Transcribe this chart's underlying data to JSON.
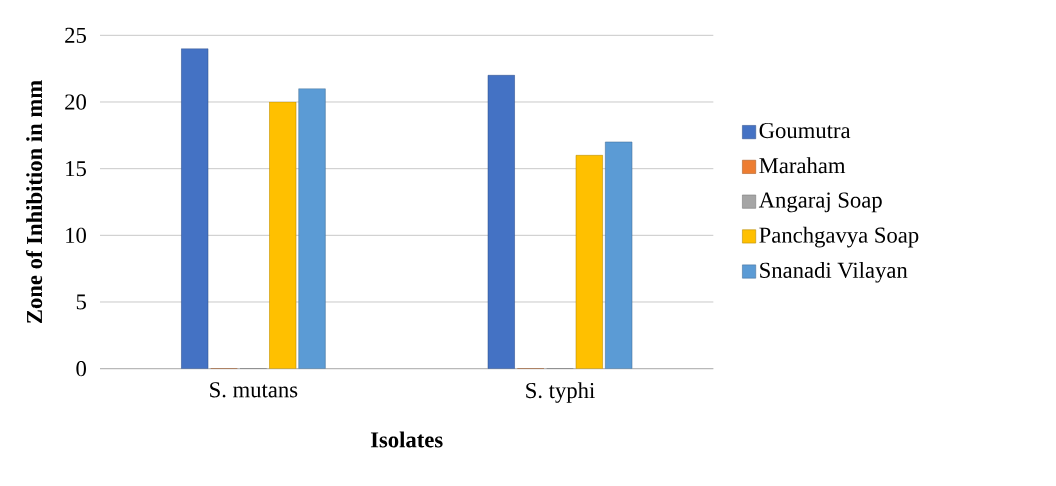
{
  "chart_data": {
    "type": "bar",
    "xlabel": "Isolates",
    "ylabel": "Zone of Inhibition in mm",
    "categories": [
      "S. mutans",
      "S. typhi"
    ],
    "series": [
      {
        "name": "Goumutra",
        "color": "#4472c4",
        "values": [
          24,
          22
        ]
      },
      {
        "name": "Maraham",
        "color": "#ed7d31",
        "values": [
          0,
          0
        ]
      },
      {
        "name": "Angaraj Soap",
        "color": "#a5a5a5",
        "values": [
          0,
          0
        ]
      },
      {
        "name": "Panchgavya Soap",
        "color": "#ffc000",
        "values": [
          20,
          16
        ]
      },
      {
        "name": "Snanadi Vilayan",
        "color": "#5b9bd5",
        "values": [
          21,
          17
        ]
      }
    ],
    "ylim": [
      0,
      25
    ],
    "yticks": [
      0,
      5,
      10,
      15,
      20,
      25
    ],
    "grid": "y",
    "legend": "right"
  }
}
